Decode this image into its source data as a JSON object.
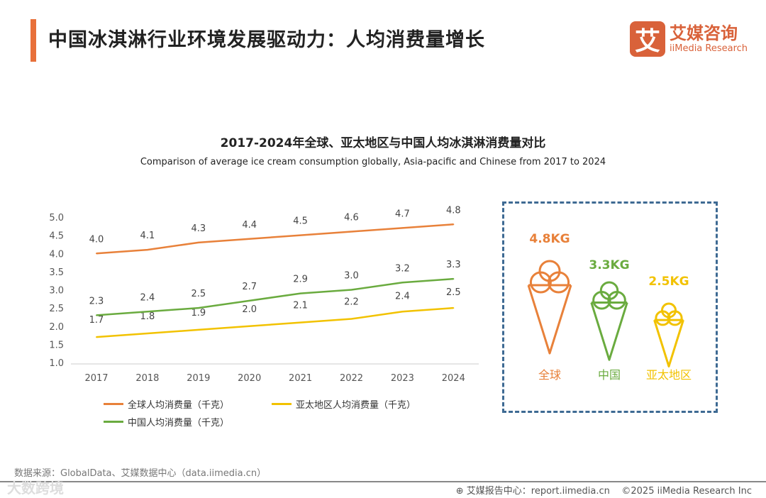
{
  "header": {
    "title": "中国冰淇淋行业环境发展驱动力：人均消费量增长"
  },
  "logo": {
    "mark": "艾",
    "cn": "艾媒咨询",
    "en": "iiMedia Research"
  },
  "chart_data": {
    "type": "line",
    "title": "2017-2024年全球、亚太地区与中国人均冰淇淋消费量对比",
    "subtitle": "Comparison of average ice cream consumption globally, Asia-pacific and Chinese from 2017 to 2024",
    "categories": [
      "2017",
      "2018",
      "2019",
      "2020",
      "2021",
      "2022",
      "2023",
      "2024"
    ],
    "ylim": [
      1.0,
      5.0
    ],
    "yticks": [
      "1.0",
      "1.5",
      "2.0",
      "2.5",
      "3.0",
      "3.5",
      "4.0",
      "4.5",
      "5.0"
    ],
    "grid": false,
    "legend_position": "bottom-left",
    "series": [
      {
        "name": "全球人均消费量（千克）",
        "color": "#E8813A",
        "values": [
          4.0,
          4.1,
          4.3,
          4.4,
          4.5,
          4.6,
          4.7,
          4.8
        ]
      },
      {
        "name": "亚太地区人均消费量（千克）",
        "color": "#F2C200",
        "values": [
          1.7,
          1.8,
          1.9,
          2.0,
          2.1,
          2.2,
          2.4,
          2.5
        ]
      },
      {
        "name": "中国人均消费量（千克）",
        "color": "#6AAB3F",
        "values": [
          2.3,
          2.4,
          2.5,
          2.7,
          2.9,
          3.0,
          3.2,
          3.3
        ]
      }
    ]
  },
  "infographic": [
    {
      "value": "4.8KG",
      "label": "全球",
      "color": "#E8813A"
    },
    {
      "value": "3.3KG",
      "label": "中国",
      "color": "#6AAB3F"
    },
    {
      "value": "2.5KG",
      "label": "亚太地区",
      "color": "#F2C200"
    }
  ],
  "footer": {
    "source": "数据来源：GlobalData、艾媒数据中心（data.iimedia.cn）",
    "report": "艾媒报告中心：report.iimedia.cn",
    "copyright": "©2025  iiMedia Research Inc",
    "watermark": "大数跨境"
  }
}
